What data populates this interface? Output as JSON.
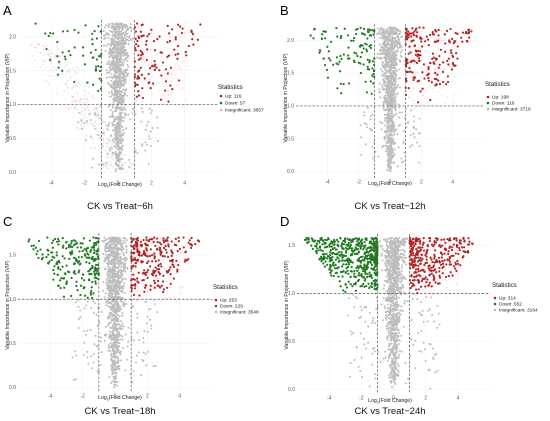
{
  "figure": {
    "panel_count": 4
  },
  "colors": {
    "up": "#b22222",
    "down": "#1f7a1f",
    "insignificant": "#bdbdbd",
    "pink": "#ffb3cc",
    "cyan": "#c6f1fb",
    "grid": "#ececec",
    "threshold": "#555555"
  },
  "chart_data": [
    {
      "type": "scatter",
      "panel_letter": "A",
      "caption": "CK vs Treat−6h",
      "xlabel_prefix": "Log",
      "xlabel_sub": "2",
      "xlabel_suffix": "(Fold Change)",
      "ylabel": "Variable Importance in Projection (VIP)",
      "xlim": [
        -6,
        6
      ],
      "ylim": [
        -0.1,
        2.25
      ],
      "x_ticks": [
        -4,
        -2,
        0,
        2,
        4
      ],
      "y_ticks": [
        0.0,
        0.5,
        1.0,
        1.5,
        2.0
      ],
      "y_tick_labels": [
        "0.0",
        "0.5",
        "1.0",
        "1.5",
        "2.0"
      ],
      "fc_threshold": [
        -1,
        1
      ],
      "vip_threshold": 1.0,
      "grid": true,
      "legend_title": "Statistics",
      "legend_placement": "right",
      "legend": [
        {
          "label": "Up: 116",
          "category": "up"
        },
        {
          "label": "Down: 57",
          "category": "down"
        },
        {
          "label": "Insignificant: 3857",
          "category": "insignificant"
        }
      ],
      "counts": {
        "up": 116,
        "down": 57,
        "insignificant": 3857
      },
      "distribution": {
        "ymax": 2.2,
        "spread": 1.1,
        "tail": true
      }
    },
    {
      "type": "scatter",
      "panel_letter": "B",
      "caption": "CK vs Treat−12h",
      "xlabel_prefix": "Log",
      "xlabel_sub": "2",
      "xlabel_suffix": "(Fold Change)",
      "ylabel": "Variable Importance in Projection (VIP)",
      "xlim": [
        -6,
        6
      ],
      "ylim": [
        -0.1,
        2.25
      ],
      "x_ticks": [
        -4,
        -2,
        0,
        2,
        4
      ],
      "y_ticks": [
        0.0,
        0.5,
        1.0,
        1.5,
        2.0
      ],
      "y_tick_labels": [
        "0.0",
        "0.5",
        "1.0",
        "1.5",
        "2.0"
      ],
      "fc_threshold": [
        -1,
        1
      ],
      "vip_threshold": 1.0,
      "grid": true,
      "legend_title": "Statistics",
      "legend_placement": "right",
      "legend": [
        {
          "label": "Up: 198",
          "category": "up"
        },
        {
          "label": "Down: 116",
          "category": "down"
        },
        {
          "label": "Insignificant: 3716",
          "category": "insignificant"
        }
      ],
      "counts": {
        "up": 198,
        "down": 116,
        "insignificant": 3716
      },
      "distribution": {
        "ymax": 2.2,
        "spread": 0.9,
        "tail": false
      }
    },
    {
      "type": "scatter",
      "panel_letter": "C",
      "caption": "CK vs Treat−18h",
      "xlabel_prefix": "Log",
      "xlabel_sub": "2",
      "xlabel_suffix": "(Fold Change)",
      "ylabel": "Variable Importance in Projection (VIP)",
      "xlim": [
        -6,
        6
      ],
      "ylim": [
        -0.05,
        1.75
      ],
      "x_ticks": [
        -4,
        -2,
        0,
        2,
        4
      ],
      "y_ticks": [
        0.0,
        0.5,
        1.0,
        1.5
      ],
      "y_tick_labels": [
        "0.0",
        "0.5",
        "1.0",
        "1.5"
      ],
      "fc_threshold": [
        -1,
        1
      ],
      "vip_threshold": 1.0,
      "grid": true,
      "legend_title": "Statistics",
      "legend_placement": "right",
      "legend": [
        {
          "label": "Up: 253",
          "category": "up"
        },
        {
          "label": "Down: 229",
          "category": "down"
        },
        {
          "label": "Insignificant: 3548",
          "category": "insignificant"
        }
      ],
      "counts": {
        "up": 253,
        "down": 229,
        "insignificant": 3548
      },
      "distribution": {
        "ymax": 1.7,
        "spread": 1.2,
        "tail": false
      }
    },
    {
      "type": "scatter",
      "panel_letter": "D",
      "caption": "CK vs Treat−24h",
      "xlabel_prefix": "Log",
      "xlabel_sub": "2",
      "xlabel_suffix": "(Fold Change)",
      "ylabel": "Variable Importance in Projection (VIP)",
      "xlim": [
        -6,
        6
      ],
      "ylim": [
        -0.05,
        1.62
      ],
      "x_ticks": [
        -4,
        -2,
        0,
        2,
        4
      ],
      "y_ticks": [
        0.0,
        0.5,
        1.0,
        1.5
      ],
      "y_tick_labels": [
        "0.0",
        "0.5",
        "1.0",
        "1.5"
      ],
      "fc_threshold": [
        -1,
        1
      ],
      "vip_threshold": 1.0,
      "grid": true,
      "legend_title": "Statistics",
      "legend_placement": "right",
      "legend": [
        {
          "label": "Up: 314",
          "category": "up"
        },
        {
          "label": "Down: 552",
          "category": "down"
        },
        {
          "label": "Insignificant: 3164",
          "category": "insignificant"
        }
      ],
      "counts": {
        "up": 314,
        "down": 552,
        "insignificant": 3164
      },
      "distribution": {
        "ymax": 1.58,
        "spread": 1.3,
        "tail": false
      }
    }
  ]
}
